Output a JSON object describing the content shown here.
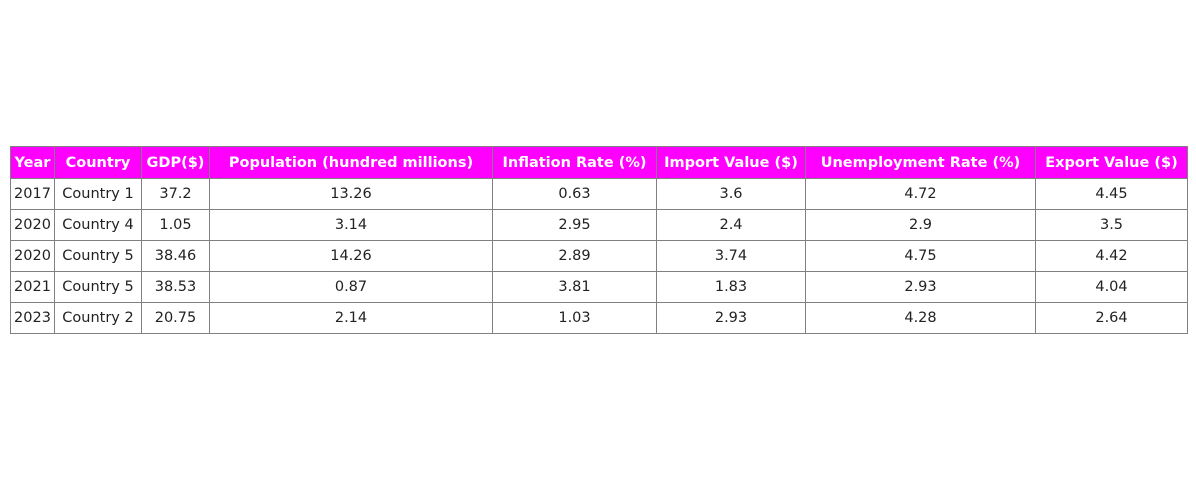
{
  "colors": {
    "header_background": "#ff00ff",
    "header_text": "#ffffff",
    "border": "#808080",
    "cell_text": "#222222"
  },
  "chart_data": {
    "type": "table",
    "columns": [
      "Year",
      "Country",
      "GDP($)",
      "Population (hundred millions)",
      "Inflation Rate (%)",
      "Import Value ($)",
      "Unemployment Rate (%)",
      "Export Value ($)"
    ],
    "rows": [
      [
        "2017",
        "Country 1",
        "37.2",
        "13.26",
        "0.63",
        "3.6",
        "4.72",
        "4.45"
      ],
      [
        "2020",
        "Country 4",
        "1.05",
        "3.14",
        "2.95",
        "2.4",
        "2.9",
        "3.5"
      ],
      [
        "2020",
        "Country 5",
        "38.46",
        "14.26",
        "2.89",
        "3.74",
        "4.75",
        "4.42"
      ],
      [
        "2021",
        "Country 5",
        "38.53",
        "0.87",
        "3.81",
        "1.83",
        "2.93",
        "4.04"
      ],
      [
        "2023",
        "Country 2",
        "20.75",
        "2.14",
        "1.03",
        "2.93",
        "4.28",
        "2.64"
      ]
    ]
  }
}
